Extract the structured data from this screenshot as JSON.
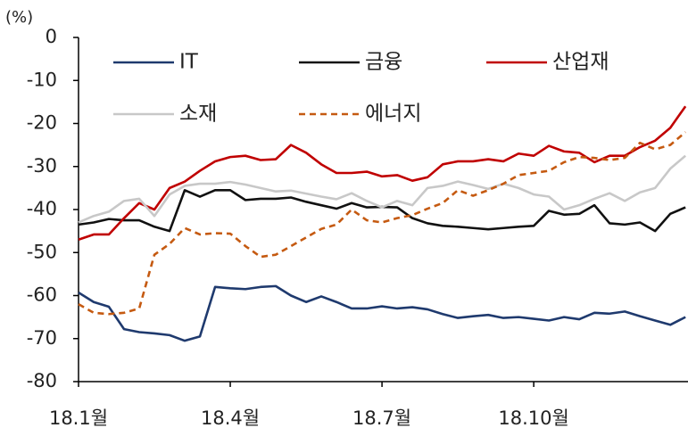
{
  "chart_data": {
    "type": "line",
    "y_label": "(%)",
    "x": [
      0,
      0.3,
      0.6,
      0.9,
      1.2,
      1.5,
      1.8,
      2.1,
      2.4,
      2.7,
      3.0,
      3.3,
      3.6,
      3.9,
      4.2,
      4.5,
      4.8,
      5.1,
      5.4,
      5.7,
      6.0,
      6.3,
      6.6,
      6.9,
      7.2,
      7.5,
      7.8,
      8.1,
      8.4,
      8.7,
      9.0,
      9.3,
      9.6,
      9.9,
      10.2,
      10.5,
      10.8,
      11.1,
      11.4,
      11.7,
      12.0
    ],
    "xlim": [
      0,
      12.05
    ],
    "xticks": [
      {
        "value": 0,
        "label": "18.1월"
      },
      {
        "value": 3,
        "label": "18.4월"
      },
      {
        "value": 6,
        "label": "18.7월"
      },
      {
        "value": 9,
        "label": "18.10월"
      }
    ],
    "ylim": [
      -80,
      0
    ],
    "yticks": [
      0,
      -10,
      -20,
      -30,
      -40,
      -50,
      -60,
      -70,
      -80
    ],
    "grid": false,
    "legend": "top",
    "series": [
      {
        "name": "IT",
        "color": "#1f3a6e",
        "line_style": "solid",
        "values": [
          -59.3,
          -61.5,
          -62.6,
          -67.8,
          -68.5,
          -68.8,
          -69.2,
          -70.5,
          -69.5,
          -58.0,
          -58.3,
          -58.5,
          -58.0,
          -57.8,
          -60.0,
          -61.5,
          -60.2,
          -61.5,
          -63.0,
          -63.0,
          -62.5,
          -63.0,
          -62.7,
          -63.2,
          -64.3,
          -65.2,
          -64.8,
          -64.5,
          -65.2,
          -65.0,
          -65.4,
          -65.8,
          -65.0,
          -65.5,
          -64.0,
          -64.2,
          -63.7,
          -64.8,
          -65.8,
          -66.8,
          -65.0
        ]
      },
      {
        "name": "금융",
        "color": "#111111",
        "line_style": "solid",
        "values": [
          -43.5,
          -43.0,
          -42.2,
          -42.5,
          -42.5,
          -44.0,
          -45.0,
          -35.5,
          -37.0,
          -35.5,
          -35.5,
          -37.8,
          -37.5,
          -37.5,
          -37.2,
          -38.2,
          -39.0,
          -39.8,
          -38.5,
          -39.5,
          -39.4,
          -39.5,
          -42.0,
          -43.2,
          -43.8,
          -44.0,
          -44.3,
          -44.6,
          -44.3,
          -44.0,
          -43.8,
          -40.3,
          -41.2,
          -41.0,
          -39.0,
          -43.2,
          -43.5,
          -43.0,
          -45.0,
          -41.0,
          -39.5
        ]
      },
      {
        "name": "산업재",
        "color": "#c00000",
        "line_style": "solid",
        "values": [
          -47.0,
          -45.8,
          -45.8,
          -42.0,
          -38.5,
          -40.0,
          -35.0,
          -33.5,
          -31.0,
          -28.8,
          -27.8,
          -27.5,
          -28.5,
          -28.3,
          -25.0,
          -26.8,
          -29.5,
          -31.5,
          -31.5,
          -31.2,
          -32.3,
          -32.0,
          -33.3,
          -32.5,
          -29.5,
          -28.8,
          -28.8,
          -28.3,
          -28.8,
          -27.0,
          -27.5,
          -25.2,
          -26.5,
          -26.8,
          -29.0,
          -27.5,
          -27.5,
          -25.5,
          -24.0,
          -21.0,
          -16.0
        ]
      },
      {
        "name": "소재",
        "color": "#c8c8c8",
        "line_style": "solid",
        "values": [
          -43.0,
          -41.5,
          -40.5,
          -38.0,
          -37.5,
          -41.5,
          -36.5,
          -34.5,
          -34.0,
          -34.0,
          -33.6,
          -34.2,
          -35.0,
          -35.8,
          -35.6,
          -36.3,
          -37.0,
          -37.6,
          -36.2,
          -38.0,
          -39.5,
          -38.0,
          -39.0,
          -35.0,
          -34.5,
          -33.5,
          -34.3,
          -35.2,
          -34.0,
          -35.0,
          -36.5,
          -37.0,
          -40.0,
          -39.0,
          -37.5,
          -36.2,
          -38.0,
          -36.0,
          -35.0,
          -30.5,
          -27.5
        ]
      },
      {
        "name": "에너지",
        "color": "#c55a11",
        "line_style": "dashed",
        "values": [
          -62.0,
          -64.0,
          -64.3,
          -64.0,
          -63.0,
          -50.5,
          -48.0,
          -44.3,
          -45.8,
          -45.5,
          -45.6,
          -48.5,
          -51.0,
          -50.5,
          -48.5,
          -46.5,
          -44.5,
          -43.5,
          -40.0,
          -42.5,
          -43.0,
          -42.0,
          -41.3,
          -39.8,
          -38.5,
          -35.5,
          -36.8,
          -35.5,
          -34.0,
          -32.0,
          -31.5,
          -31.0,
          -29.0,
          -27.8,
          -28.0,
          -28.5,
          -28.0,
          -24.5,
          -26.0,
          -25.0,
          -22.0
        ]
      }
    ]
  }
}
